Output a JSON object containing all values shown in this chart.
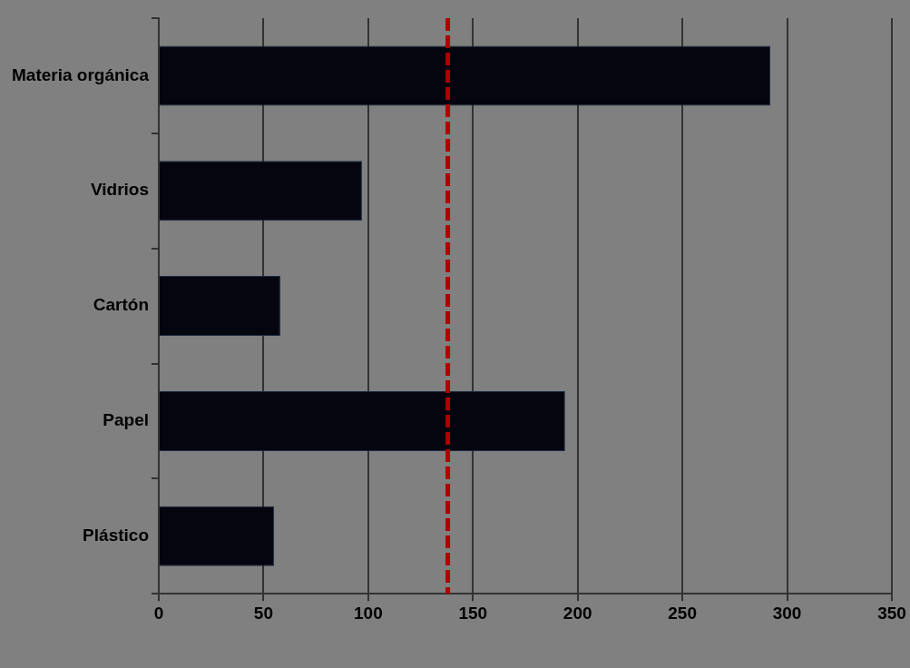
{
  "chart_data": {
    "type": "bar",
    "orientation": "horizontal",
    "categories": [
      "Materia orgánica",
      "Vidrios",
      "Cartón",
      "Papel",
      "Plástico"
    ],
    "values": [
      292,
      97,
      58,
      194,
      55
    ],
    "color": "#05050f",
    "xlim": [
      0,
      350
    ],
    "xticks": [
      0,
      50,
      100,
      150,
      200,
      250,
      300,
      350
    ],
    "grid": "x",
    "ref_lines": [
      {
        "axis": "x",
        "value": 138,
        "color": "#b00000",
        "line_style": "dashed"
      }
    ]
  }
}
